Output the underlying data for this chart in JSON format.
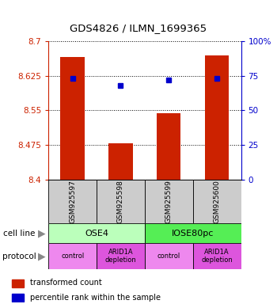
{
  "title": "GDS4826 / ILMN_1699365",
  "samples": [
    "GSM925597",
    "GSM925598",
    "GSM925599",
    "GSM925600"
  ],
  "bar_values": [
    8.665,
    8.478,
    8.543,
    8.668
  ],
  "dot_values": [
    73,
    68,
    72,
    73
  ],
  "ylim_left": [
    8.4,
    8.7
  ],
  "ylim_right": [
    0,
    100
  ],
  "yticks_left": [
    8.4,
    8.475,
    8.55,
    8.625,
    8.7
  ],
  "yticks_right": [
    0,
    25,
    50,
    75,
    100
  ],
  "ytick_labels_left": [
    "8.4",
    "8.475",
    "8.55",
    "8.625",
    "8.7"
  ],
  "ytick_labels_right": [
    "0",
    "25",
    "50",
    "75",
    "100%"
  ],
  "bar_color": "#cc2200",
  "dot_color": "#0000cc",
  "bar_bottom": 8.4,
  "cell_line_colors": [
    "#bbffbb",
    "#55ee55"
  ],
  "cell_lines": [
    [
      "OSE4",
      0,
      2
    ],
    [
      "IOSE80pc",
      2,
      4
    ]
  ],
  "prot_colors": [
    "#ee88ee",
    "#dd55dd",
    "#ee88ee",
    "#dd55dd"
  ],
  "prot_labels": [
    "control",
    "ARID1A\ndepletion",
    "control",
    "ARID1A\ndepletion"
  ],
  "sample_bg_color": "#cccccc",
  "label_left_text": [
    "cell line",
    "protocol"
  ],
  "legend_items": [
    {
      "color": "#cc2200",
      "label": "transformed count"
    },
    {
      "color": "#0000cc",
      "label": "percentile rank within the sample"
    }
  ]
}
